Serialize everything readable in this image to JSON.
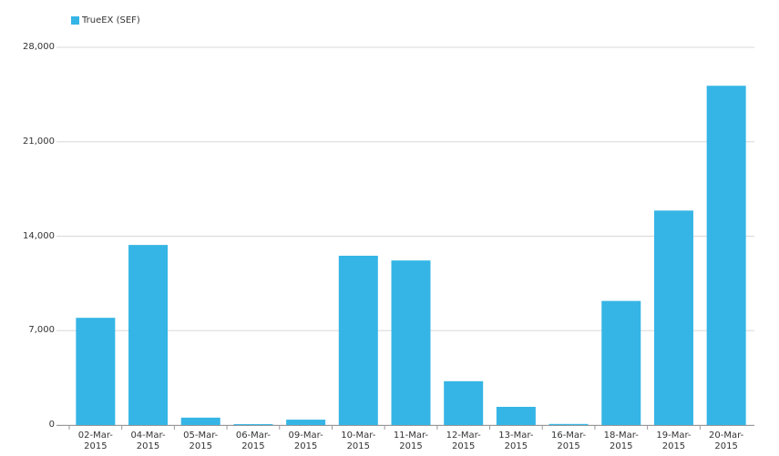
{
  "chart_data": {
    "type": "bar",
    "categories": [
      "02-Mar-2015",
      "04-Mar-2015",
      "05-Mar-2015",
      "06-Mar-2015",
      "09-Mar-2015",
      "10-Mar-2015",
      "11-Mar-2015",
      "12-Mar-2015",
      "13-Mar-2015",
      "16-Mar-2015",
      "18-Mar-2015",
      "19-Mar-2015",
      "20-Mar-2015"
    ],
    "series": [
      {
        "name": "TrueEX (SEF)",
        "color": "#35b5e5",
        "values": [
          7950,
          13350,
          550,
          70,
          400,
          12550,
          12200,
          3250,
          1350,
          80,
          9200,
          15900,
          25150
        ]
      }
    ],
    "ylim": [
      0,
      28000
    ],
    "yticks": [
      {
        "value": 0,
        "label": "0"
      },
      {
        "value": 7000,
        "label": "7,000"
      },
      {
        "value": 14000,
        "label": "14,000"
      },
      {
        "value": 21000,
        "label": "21,000"
      },
      {
        "value": 28000,
        "label": "28,000"
      }
    ],
    "grid": true,
    "legend": "top-left"
  }
}
